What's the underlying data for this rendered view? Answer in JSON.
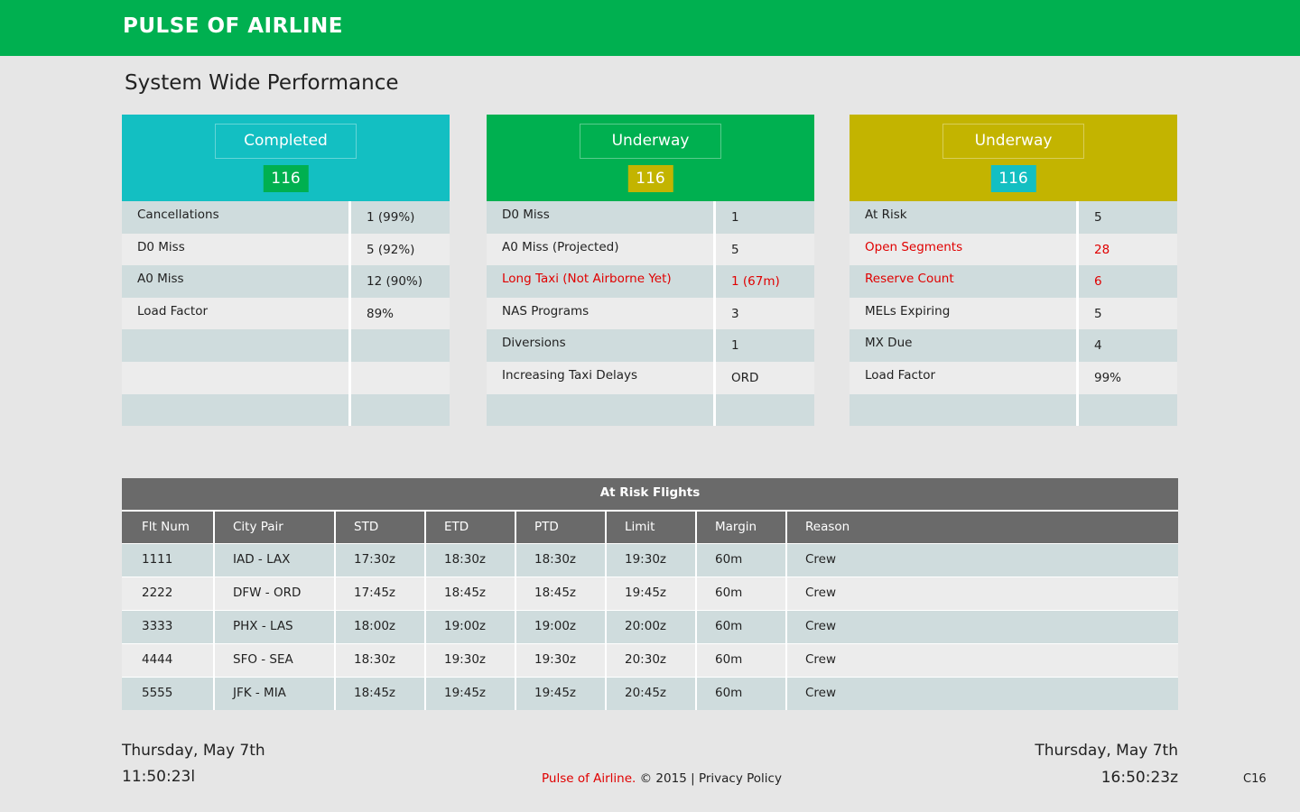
{
  "header": {
    "brand": "PULSE OF AIRLINE",
    "bg": "#00b050"
  },
  "page": {
    "title": "System Wide Performance"
  },
  "cards": [
    {
      "label": "Completed",
      "count": "116",
      "head_color": "#13bfc2",
      "count_color": "#00b050",
      "rows": [
        {
          "name": "Cancellations",
          "value": "1 (99%)",
          "alert": false
        },
        {
          "name": "D0 Miss",
          "value": "5 (92%)",
          "alert": false
        },
        {
          "name": "A0 Miss",
          "value": "12 (90%)",
          "alert": false
        },
        {
          "name": "Load Factor",
          "value": "89%",
          "alert": false
        },
        {
          "name": "",
          "value": "",
          "alert": false
        },
        {
          "name": "",
          "value": "",
          "alert": false
        },
        {
          "name": "",
          "value": "",
          "alert": false
        }
      ]
    },
    {
      "label": "Underway",
      "count": "116",
      "head_color": "#00b050",
      "count_color": "#c3b400",
      "rows": [
        {
          "name": "D0 Miss",
          "value": "1",
          "alert": false
        },
        {
          "name": "A0 Miss (Projected)",
          "value": "5",
          "alert": false
        },
        {
          "name": "Long Taxi (Not Airborne Yet)",
          "value": "1 (67m)",
          "alert": true
        },
        {
          "name": "NAS Programs",
          "value": "3",
          "alert": false
        },
        {
          "name": "Diversions",
          "value": "1",
          "alert": false
        },
        {
          "name": "Increasing Taxi Delays",
          "value": "ORD",
          "alert": false
        },
        {
          "name": "",
          "value": "",
          "alert": false
        }
      ]
    },
    {
      "label": "Underway",
      "count": "116",
      "head_color": "#c3b400",
      "count_color": "#13bfc2",
      "rows": [
        {
          "name": "At Risk",
          "value": "5",
          "alert": false
        },
        {
          "name": "Open Segments",
          "value": "28",
          "alert": true
        },
        {
          "name": "Reserve Count",
          "value": "6",
          "alert": true
        },
        {
          "name": "MELs Expiring",
          "value": "5",
          "alert": false
        },
        {
          "name": "MX Due",
          "value": "4",
          "alert": false
        },
        {
          "name": "Load Factor",
          "value": "99%",
          "alert": false
        },
        {
          "name": "",
          "value": "",
          "alert": false
        }
      ]
    }
  ],
  "at_risk": {
    "title": "At Risk Flights",
    "columns": [
      "Flt Num",
      "City Pair",
      "STD",
      "ETD",
      "PTD",
      "Limit",
      "Margin",
      "Reason"
    ],
    "rows": [
      [
        "1111",
        "IAD - LAX",
        "17:30z",
        "18:30z",
        "18:30z",
        "19:30z",
        "60m",
        "Crew"
      ],
      [
        "2222",
        "DFW - ORD",
        "17:45z",
        "18:45z",
        "18:45z",
        "19:45z",
        "60m",
        "Crew"
      ],
      [
        "3333",
        "PHX - LAS",
        "18:00z",
        "19:00z",
        "19:00z",
        "20:00z",
        "60m",
        "Crew"
      ],
      [
        "4444",
        "SFO - SEA",
        "18:30z",
        "19:30z",
        "19:30z",
        "20:30z",
        "60m",
        "Crew"
      ],
      [
        "5555",
        "JFK - MIA",
        "18:45z",
        "19:45z",
        "19:45z",
        "20:45z",
        "60m",
        "Crew"
      ]
    ]
  },
  "footer": {
    "local_date": "Thursday, May 7th",
    "local_time": "11:50:23l",
    "zulu_date": "Thursday, May 7th",
    "zulu_time": "16:50:23z",
    "brand_link": "Pulse of Airline.",
    "copyright": "© 2015",
    "separator": "|",
    "privacy": "Privacy Policy",
    "code": "C16"
  }
}
